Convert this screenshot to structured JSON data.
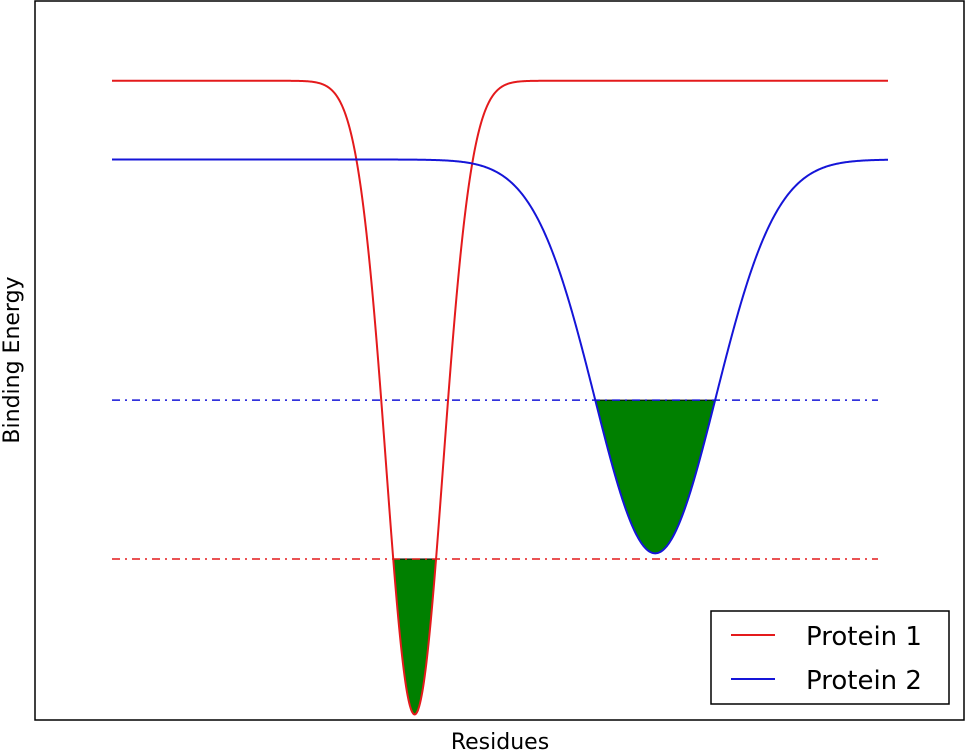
{
  "chart_data": {
    "type": "line",
    "title": "",
    "xlabel": "Residues",
    "ylabel": "Binding Energy",
    "xlim": [
      0,
      100
    ],
    "ylim": [
      0,
      100
    ],
    "grid": false,
    "ticks_visible": false,
    "legend_position": "bottom-right",
    "series": [
      {
        "name": "Protein 1",
        "color": "#e41a1c",
        "baseline": 89,
        "well_center": 39,
        "well_depth": 88.5,
        "well_width": 5.2,
        "threshold": 22.2,
        "x_range": [
          0,
          100
        ]
      },
      {
        "name": "Protein 2",
        "color": "#1515d8",
        "baseline": 78,
        "well_center": 70,
        "well_depth": 55,
        "well_width": 11,
        "threshold": 44.4,
        "x_range": [
          0,
          100
        ]
      }
    ],
    "fill_color": "#008000"
  }
}
